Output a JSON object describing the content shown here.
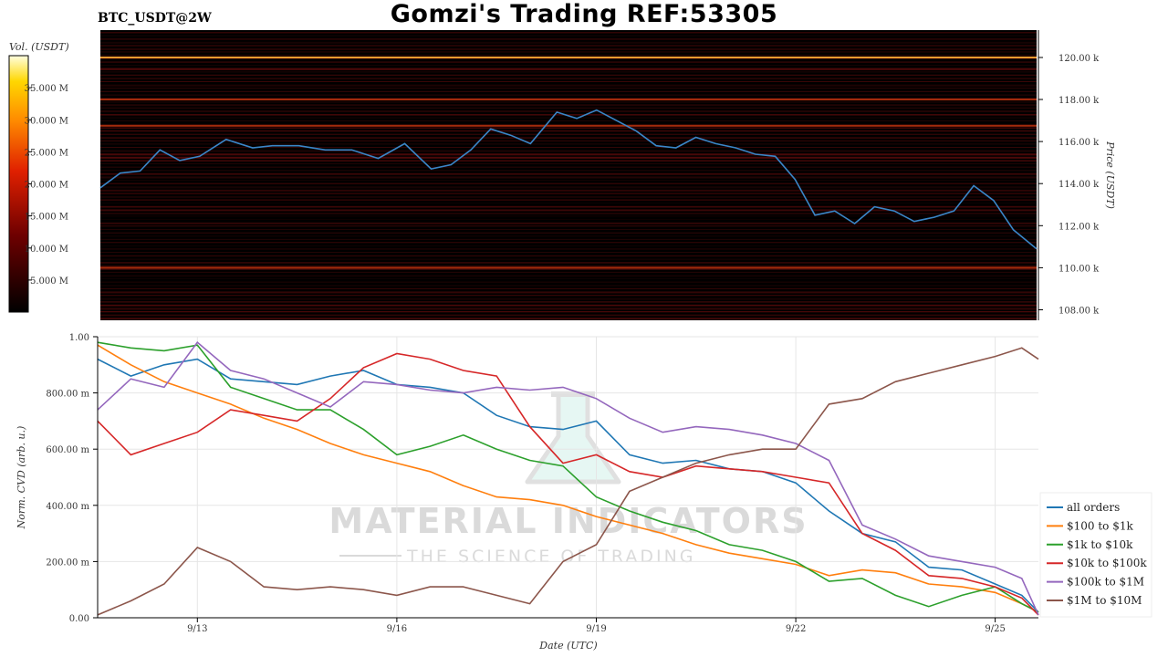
{
  "header": {
    "title": "Gomzi's Trading REF:53305",
    "symbol": "BTC_USDT@2W"
  },
  "watermark": {
    "brand": "MATERIAL INDICATORS",
    "tagline": "THE SCIENCE OF TRADING"
  },
  "chart_data": [
    {
      "type": "heatmap",
      "colorbar_label": "Vol. (USDT)",
      "colorbar_ticks": [
        "35.000 M",
        "30.000 M",
        "25.000 M",
        "20.000 M",
        "15.000 M",
        "10.000 M",
        "5.000 M"
      ],
      "colorbar_values": [
        35,
        30,
        25,
        20,
        15,
        10,
        5
      ],
      "colorbar_range": [
        0,
        40
      ],
      "ylabel": "Price (USDT)",
      "ylim": [
        107.5,
        121.3
      ],
      "yticks": [
        "120.00 k",
        "118.00 k",
        "116.00 k",
        "114.00 k",
        "112.00 k",
        "110.00 k",
        "108.00 k"
      ],
      "ytick_values": [
        120,
        118,
        116,
        114,
        112,
        110,
        108
      ],
      "xlim": [
        0,
        14.15
      ],
      "strong_levels": [
        120.0,
        118.0,
        116.75,
        110.0
      ],
      "price_line_color": "#3a86c8",
      "price_series": {
        "x": [
          0,
          0.3,
          0.6,
          0.9,
          1.2,
          1.5,
          1.9,
          2.3,
          2.6,
          3.0,
          3.4,
          3.8,
          4.2,
          4.6,
          5.0,
          5.3,
          5.6,
          5.9,
          6.2,
          6.5,
          6.9,
          7.2,
          7.5,
          7.8,
          8.1,
          8.4,
          8.7,
          9.0,
          9.3,
          9.6,
          9.9,
          10.2,
          10.5,
          10.8,
          11.1,
          11.4,
          11.7,
          12.0,
          12.3,
          12.6,
          12.9,
          13.2,
          13.5,
          13.8,
          14.15
        ],
        "y": [
          113.8,
          114.5,
          114.6,
          115.6,
          115.1,
          115.3,
          116.1,
          115.7,
          115.8,
          115.8,
          115.6,
          115.6,
          115.2,
          115.9,
          114.7,
          114.9,
          115.6,
          116.6,
          116.3,
          115.9,
          117.4,
          117.1,
          117.5,
          117.0,
          116.5,
          115.8,
          115.7,
          116.2,
          115.9,
          115.7,
          115.4,
          115.3,
          114.2,
          112.5,
          112.7,
          112.1,
          112.9,
          112.7,
          112.2,
          112.4,
          112.7,
          113.9,
          113.2,
          111.8,
          110.9
        ]
      }
    },
    {
      "type": "line",
      "xlabel": "Date (UTC)",
      "ylabel": "Norm. CVD (arb. u.)",
      "ylim": [
        0,
        1
      ],
      "yticks": [
        "0.00",
        "200.00 m",
        "400.00 m",
        "600.00 m",
        "800.00 m",
        "1.00"
      ],
      "ytick_values": [
        0,
        0.2,
        0.4,
        0.6,
        0.8,
        1.0
      ],
      "xlim": [
        0,
        14.15
      ],
      "categories": [
        "9/13",
        "9/16",
        "9/19",
        "9/22",
        "9/25"
      ],
      "xtick_values": [
        1.5,
        4.5,
        7.5,
        10.5,
        13.5
      ],
      "legend_position": "lower-right",
      "x": [
        0,
        0.5,
        1.0,
        1.5,
        2.0,
        2.5,
        3.0,
        3.5,
        4.0,
        4.5,
        5.0,
        5.5,
        6.0,
        6.5,
        7.0,
        7.5,
        8.0,
        8.5,
        9.0,
        9.5,
        10.0,
        10.5,
        11.0,
        11.5,
        12.0,
        12.5,
        13.0,
        13.5,
        13.9,
        14.15
      ],
      "series": [
        {
          "name": "all orders",
          "color": "#1f77b4",
          "values": [
            0.92,
            0.86,
            0.9,
            0.92,
            0.85,
            0.84,
            0.83,
            0.86,
            0.88,
            0.83,
            0.82,
            0.8,
            0.72,
            0.68,
            0.67,
            0.7,
            0.58,
            0.55,
            0.56,
            0.53,
            0.52,
            0.48,
            0.38,
            0.3,
            0.27,
            0.18,
            0.17,
            0.12,
            0.08,
            0.02
          ]
        },
        {
          "name": "$100 to $1k",
          "color": "#ff7f0e",
          "values": [
            0.97,
            0.9,
            0.84,
            0.8,
            0.76,
            0.71,
            0.67,
            0.62,
            0.58,
            0.55,
            0.52,
            0.47,
            0.43,
            0.42,
            0.4,
            0.36,
            0.33,
            0.3,
            0.26,
            0.23,
            0.21,
            0.19,
            0.15,
            0.17,
            0.16,
            0.12,
            0.11,
            0.09,
            0.05,
            0.02
          ]
        },
        {
          "name": "$1k to $10k",
          "color": "#2ca02c",
          "values": [
            0.98,
            0.96,
            0.95,
            0.97,
            0.82,
            0.78,
            0.74,
            0.74,
            0.67,
            0.58,
            0.61,
            0.65,
            0.6,
            0.56,
            0.54,
            0.43,
            0.38,
            0.34,
            0.31,
            0.26,
            0.24,
            0.2,
            0.13,
            0.14,
            0.08,
            0.04,
            0.08,
            0.11,
            0.05,
            0.02
          ]
        },
        {
          "name": "$10k to $100k",
          "color": "#d62728",
          "values": [
            0.7,
            0.58,
            0.62,
            0.66,
            0.74,
            0.72,
            0.7,
            0.78,
            0.89,
            0.94,
            0.92,
            0.88,
            0.86,
            0.68,
            0.55,
            0.58,
            0.52,
            0.5,
            0.54,
            0.53,
            0.52,
            0.5,
            0.48,
            0.3,
            0.24,
            0.15,
            0.14,
            0.11,
            0.07,
            0.01
          ]
        },
        {
          "name": "$100k to $1M",
          "color": "#9467bd",
          "values": [
            0.74,
            0.85,
            0.82,
            0.98,
            0.88,
            0.85,
            0.8,
            0.75,
            0.84,
            0.83,
            0.81,
            0.8,
            0.82,
            0.81,
            0.82,
            0.78,
            0.71,
            0.66,
            0.68,
            0.67,
            0.65,
            0.62,
            0.56,
            0.33,
            0.28,
            0.22,
            0.2,
            0.18,
            0.14,
            0.01
          ]
        },
        {
          "name": "$1M to $10M",
          "color": "#8c564b",
          "values": [
            0.01,
            0.06,
            0.12,
            0.25,
            0.2,
            0.11,
            0.1,
            0.11,
            0.1,
            0.08,
            0.11,
            0.11,
            0.08,
            0.05,
            0.2,
            0.26,
            0.45,
            0.5,
            0.55,
            0.58,
            0.6,
            0.6,
            0.76,
            0.78,
            0.84,
            0.87,
            0.9,
            0.93,
            0.96,
            0.92
          ]
        }
      ]
    }
  ]
}
